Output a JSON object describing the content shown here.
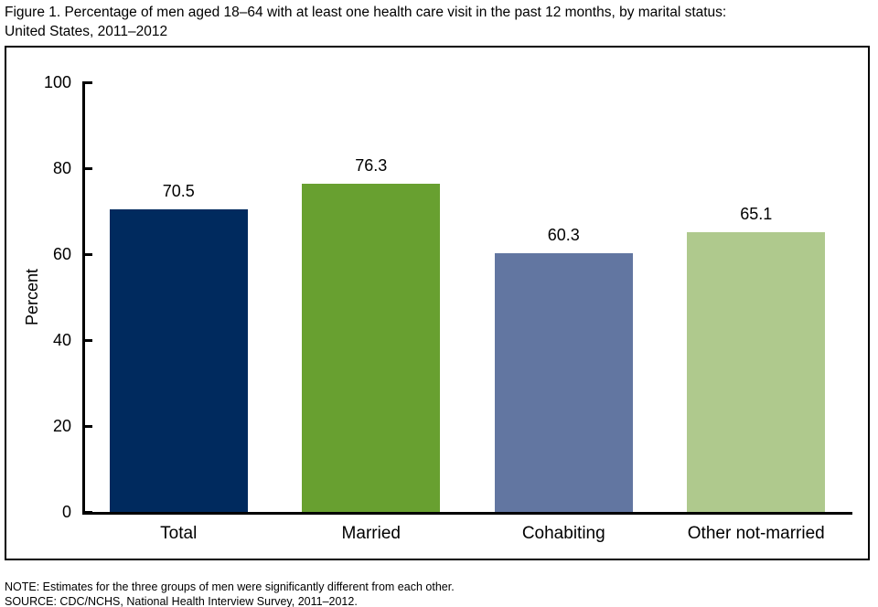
{
  "title": {
    "line1": "Figure 1. Percentage of men aged 18–64 with at least one health care visit in the past 12 months, by marital status:",
    "line2": "United States, 2011–2012"
  },
  "chart_data": {
    "type": "bar",
    "categories": [
      "Total",
      "Married",
      "Cohabiting",
      "Other not-married"
    ],
    "values": [
      70.5,
      76.3,
      60.3,
      65.1
    ],
    "data_labels": [
      "70.5",
      "76.3",
      "60.3",
      "65.1"
    ],
    "bar_colors": [
      "#002a5e",
      "#68a030",
      "#6276a1",
      "#afc98d"
    ],
    "title": "",
    "xlabel": "",
    "ylabel": "Percent",
    "ylim": [
      0,
      100
    ],
    "yticks": [
      0,
      20,
      40,
      60,
      80,
      100
    ],
    "grid": false,
    "legend": "none"
  },
  "footnotes": {
    "note": "NOTE: Estimates for the three groups of men were significantly different from each other.",
    "source": "SOURCE: CDC/NCHS, National Health Interview Survey, 2011–2012."
  },
  "colors": {
    "axis": "#000000",
    "frame_border": "#000000",
    "background": "#ffffff",
    "text": "#000000"
  }
}
